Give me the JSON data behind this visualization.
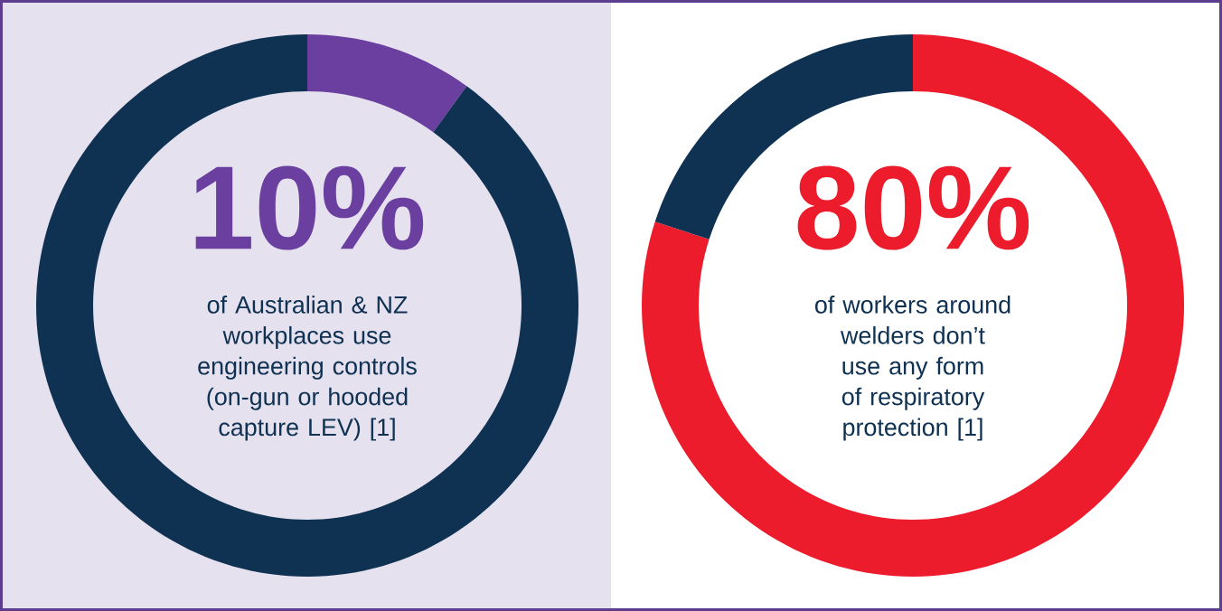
{
  "chart_data": [
    {
      "type": "donut",
      "categories": [
        null,
        null
      ],
      "values": [
        10,
        90
      ],
      "colors": [
        "#6a3f9f",
        "#0f3152"
      ],
      "annotations": [
        "10%",
        "of Australian & NZ workplaces use engineering controls (on-gun or hooded capture LEV) [1]"
      ]
    },
    {
      "type": "donut",
      "categories": [
        null,
        null
      ],
      "values": [
        80,
        20
      ],
      "colors": [
        "#ec1c2d",
        "#0f3152"
      ],
      "annotations": [
        "80%",
        "of workers around welders don’t use any form of respiratory protection [1]"
      ]
    }
  ]
}
